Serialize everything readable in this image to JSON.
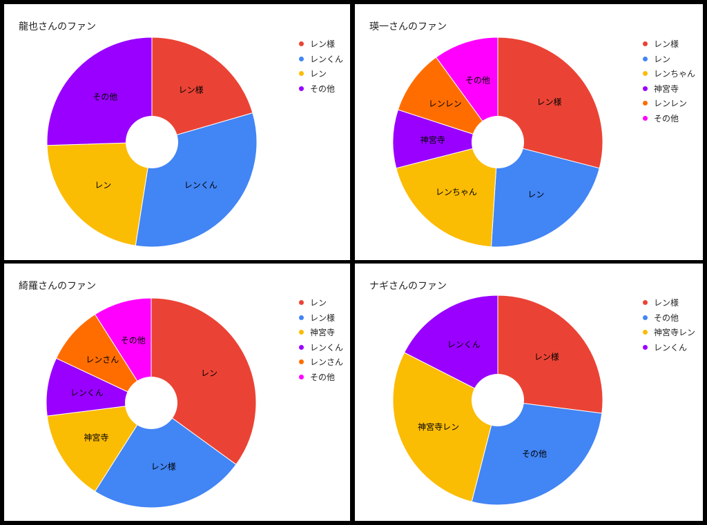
{
  "chart_data": [
    {
      "type": "pie",
      "title": "龍也さんのファン",
      "legend_position": "right",
      "donut": true,
      "slices": [
        {
          "label": "レン様",
          "value": 20.5,
          "color": "#EA4335"
        },
        {
          "label": "レンくん",
          "value": 32.0,
          "color": "#4285F4"
        },
        {
          "label": "レン",
          "value": 22.0,
          "color": "#FBBC04"
        },
        {
          "label": "その他",
          "value": 25.5,
          "color": "#9900FF"
        }
      ]
    },
    {
      "type": "pie",
      "title": "瑛一さんのファン",
      "legend_position": "right",
      "donut": true,
      "slices": [
        {
          "label": "レン様",
          "value": 29.0,
          "color": "#EA4335"
        },
        {
          "label": "レン",
          "value": 22.0,
          "color": "#4285F4"
        },
        {
          "label": "レンちゃん",
          "value": 20.0,
          "color": "#FBBC04"
        },
        {
          "label": "神宮寺",
          "value": 9.0,
          "color": "#9900FF"
        },
        {
          "label": "レンレン",
          "value": 10.0,
          "color": "#FF6D01"
        },
        {
          "label": "その他",
          "value": 10.0,
          "color": "#FF00FF"
        }
      ]
    },
    {
      "type": "pie",
      "title": "綺羅さんのファン",
      "legend_position": "right",
      "donut": true,
      "slices": [
        {
          "label": "レン",
          "value": 35.0,
          "color": "#EA4335"
        },
        {
          "label": "レン様",
          "value": 24.0,
          "color": "#4285F4"
        },
        {
          "label": "神宮寺",
          "value": 14.0,
          "color": "#FBBC04"
        },
        {
          "label": "レンくん",
          "value": 9.0,
          "color": "#9900FF"
        },
        {
          "label": "レンさん",
          "value": 9.0,
          "color": "#FF6D01"
        },
        {
          "label": "その他",
          "value": 9.0,
          "color": "#FF00FF"
        }
      ]
    },
    {
      "type": "pie",
      "title": "ナギさんのファン",
      "legend_position": "right",
      "donut": true,
      "slices": [
        {
          "label": "レン様",
          "value": 27.0,
          "color": "#EA4335"
        },
        {
          "label": "その他",
          "value": 27.0,
          "color": "#4285F4"
        },
        {
          "label": "神宮寺レン",
          "value": 28.5,
          "color": "#FBBC04"
        },
        {
          "label": "レンくん",
          "value": 17.5,
          "color": "#9900FF"
        }
      ]
    }
  ]
}
